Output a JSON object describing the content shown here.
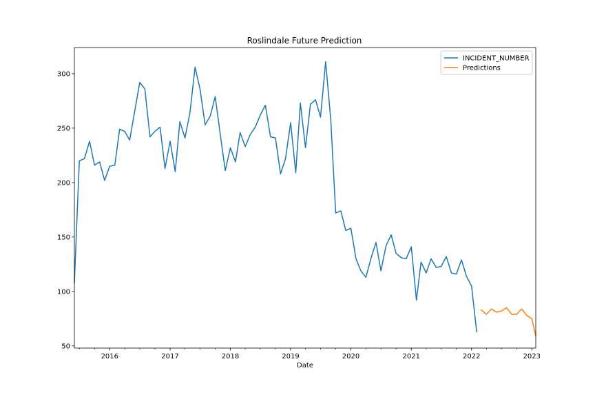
{
  "chart_data": {
    "type": "line",
    "title": "Roslindale Future Prediction",
    "xlabel": "Date",
    "ylabel": "",
    "xlim": [
      "2015-06-01",
      "2023-01-25"
    ],
    "ylim": [
      48,
      324
    ],
    "grid": false,
    "legend_position": "top-right",
    "x_ticks": [
      {
        "date": "2016-01-01",
        "label": "2016"
      },
      {
        "date": "2017-01-01",
        "label": "2017"
      },
      {
        "date": "2018-01-01",
        "label": "2018"
      },
      {
        "date": "2019-01-01",
        "label": "2019"
      },
      {
        "date": "2020-01-01",
        "label": "2020"
      },
      {
        "date": "2021-01-01",
        "label": "2021"
      },
      {
        "date": "2022-01-01",
        "label": "2022"
      },
      {
        "date": "2023-01-01",
        "label": "2023"
      }
    ],
    "y_ticks": [
      50,
      100,
      150,
      200,
      250,
      300
    ],
    "series": [
      {
        "name": "INCIDENT_NUMBER",
        "color": "#1f77b4",
        "x": [
          "2015-06-01",
          "2015-07-01",
          "2015-08-01",
          "2015-09-01",
          "2015-10-01",
          "2015-11-01",
          "2015-12-01",
          "2016-01-01",
          "2016-02-01",
          "2016-03-01",
          "2016-04-01",
          "2016-05-01",
          "2016-06-01",
          "2016-07-01",
          "2016-08-01",
          "2016-09-01",
          "2016-10-01",
          "2016-11-01",
          "2016-12-01",
          "2017-01-01",
          "2017-02-01",
          "2017-03-01",
          "2017-04-01",
          "2017-05-01",
          "2017-06-01",
          "2017-07-01",
          "2017-08-01",
          "2017-09-01",
          "2017-10-01",
          "2017-11-01",
          "2017-12-01",
          "2018-01-01",
          "2018-02-01",
          "2018-03-01",
          "2018-04-01",
          "2018-05-01",
          "2018-06-01",
          "2018-07-01",
          "2018-08-01",
          "2018-09-01",
          "2018-10-01",
          "2018-11-01",
          "2018-12-01",
          "2019-01-01",
          "2019-02-01",
          "2019-03-01",
          "2019-04-01",
          "2019-05-01",
          "2019-06-01",
          "2019-07-01",
          "2019-08-01",
          "2019-09-01",
          "2019-10-01",
          "2019-11-01",
          "2019-12-01",
          "2020-01-01",
          "2020-02-01",
          "2020-03-01",
          "2020-04-01",
          "2020-05-01",
          "2020-06-01",
          "2020-07-01",
          "2020-08-01",
          "2020-09-01",
          "2020-10-01",
          "2020-11-01",
          "2020-12-01",
          "2021-01-01",
          "2021-02-01",
          "2021-03-01",
          "2021-04-01",
          "2021-05-01",
          "2021-06-01",
          "2021-07-01",
          "2021-08-01",
          "2021-09-01",
          "2021-10-01",
          "2021-11-01",
          "2021-12-01",
          "2022-01-01",
          "2022-02-01"
        ],
        "values": [
          108,
          220,
          222,
          238,
          216,
          219,
          202,
          215,
          216,
          249,
          247,
          239,
          266,
          292,
          286,
          242,
          247,
          251,
          213,
          238,
          210,
          256,
          241,
          264,
          306,
          286,
          253,
          261,
          279,
          244,
          211,
          232,
          219,
          246,
          233,
          244,
          251,
          262,
          271,
          242,
          241,
          208,
          222,
          255,
          209,
          273,
          232,
          272,
          276,
          260,
          311,
          258,
          172,
          174,
          156,
          158,
          130,
          119,
          113,
          130,
          145,
          119,
          142,
          152,
          135,
          131,
          130,
          141,
          92,
          127,
          117,
          130,
          122,
          123,
          132,
          117,
          116,
          129,
          114,
          105,
          63
        ]
      },
      {
        "name": "Predictions",
        "color": "#ff7f0e",
        "x": [
          "2022-03-01",
          "2022-04-01",
          "2022-05-01",
          "2022-06-01",
          "2022-07-01",
          "2022-08-01",
          "2022-09-01",
          "2022-10-01",
          "2022-11-01",
          "2022-12-01",
          "2023-01-01",
          "2023-01-25"
        ],
        "values": [
          83,
          79,
          84,
          81,
          82,
          85,
          79,
          79,
          84,
          78,
          75,
          59
        ]
      }
    ]
  }
}
